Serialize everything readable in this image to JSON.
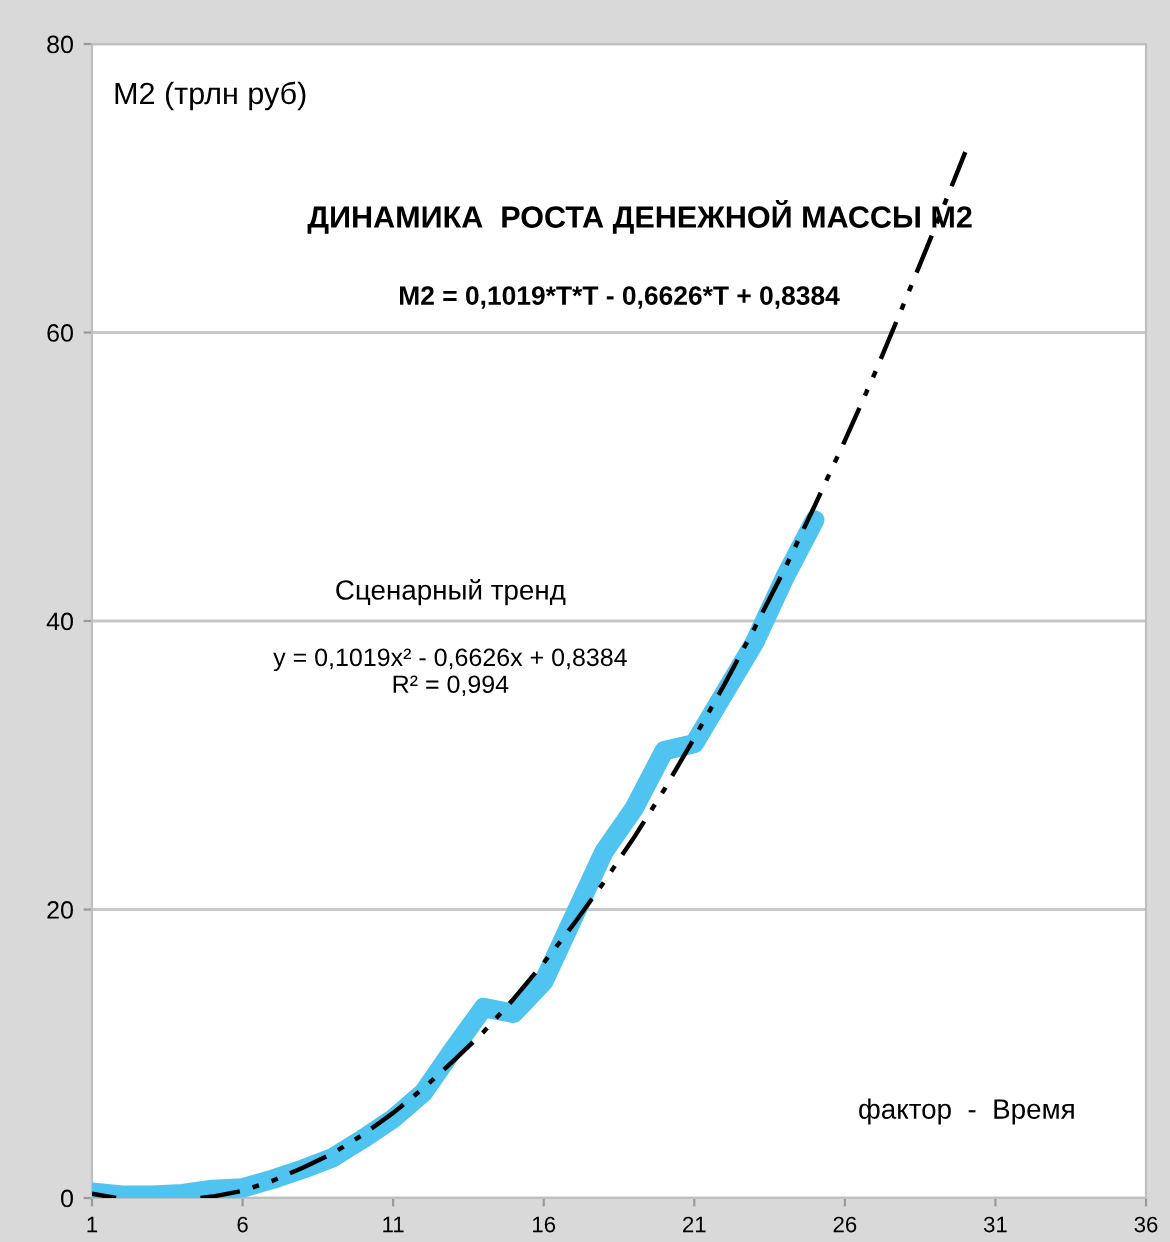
{
  "chart_data": {
    "type": "line",
    "title": "ДИНАМИКА  РОСТА ДЕНЕЖНОЙ МАССЫ М2",
    "ylabel": "М2 (трлн руб)",
    "xlabel": "фактор  -  Время",
    "annotations": [
      "М2 = 0,1019*T*T - 0,6626*T + 0,8384",
      "Сценарный тренд",
      "y = 0,1019x² - 0,6626x + 0,8384\nR² = 0,994"
    ],
    "series": [
      {
        "color": "#4fc4f0",
        "x": [
          1,
          2,
          3,
          4,
          5,
          6,
          7,
          8,
          9,
          10,
          11,
          12,
          13,
          14,
          15,
          16,
          17,
          18,
          19,
          20,
          21,
          22,
          23,
          24,
          25
        ],
        "values": [
          0.4,
          0.2,
          0.2,
          0.3,
          0.6,
          0.7,
          1.3,
          2.0,
          2.8,
          4.1,
          5.5,
          7.3,
          10.3,
          13.2,
          12.8,
          15.0,
          19.5,
          24.0,
          27.0,
          31.0,
          31.5,
          35.0,
          38.5,
          43.0,
          47.0
        ]
      },
      {
        "color": "#000000",
        "line_style": "dashed",
        "x": [
          1,
          1.8,
          3,
          4.6,
          5,
          6,
          7,
          8,
          9,
          10,
          11,
          12,
          13,
          14,
          15,
          16,
          17,
          18,
          19,
          20,
          21,
          22,
          23,
          24,
          25,
          26,
          27,
          28,
          29,
          30
        ],
        "values": [
          0.3,
          0.0,
          null,
          0.0,
          0.1,
          0.5,
          1.2,
          2.1,
          3.1,
          4.4,
          5.9,
          7.6,
          9.5,
          11.5,
          13.8,
          16.3,
          19.0,
          21.9,
          25.0,
          28.3,
          31.9,
          35.6,
          39.5,
          43.6,
          48.0,
          52.5,
          57.2,
          62.2,
          67.3,
          72.5
        ]
      }
    ],
    "xlim": [
      1,
      36
    ],
    "xticks": [
      1,
      6,
      11,
      16,
      21,
      26,
      31,
      36
    ],
    "ylim": [
      0,
      80
    ],
    "yticks": [
      0,
      20,
      40,
      60,
      80
    ],
    "grid": "y",
    "legend": false,
    "marker": "none"
  }
}
